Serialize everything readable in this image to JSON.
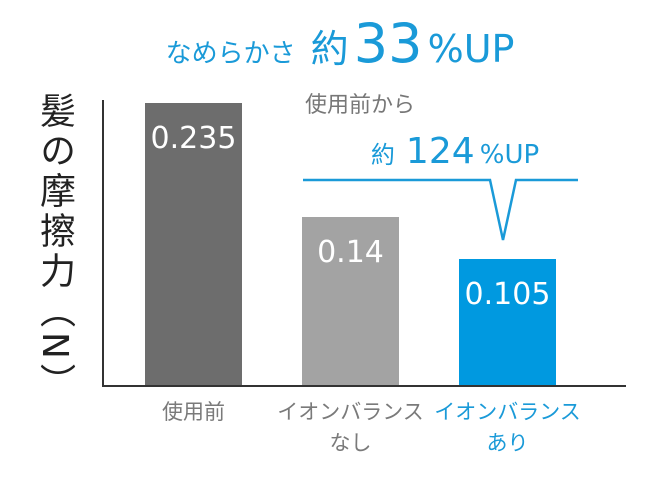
{
  "chart_data": {
    "type": "bar",
    "title": {
      "lead": "なめらかさ",
      "prefix": "約",
      "number": "33",
      "suffix": "%UP"
    },
    "annotation": {
      "line1": "使用前から",
      "prefix": "約",
      "number": "124",
      "suffix": "%UP"
    },
    "y_label": "髪の摩擦力（N）",
    "categories": [
      "使用前",
      "イオンバランス\nなし",
      "イオンバランス\nあり"
    ],
    "category_label_colors": [
      "#7a7a7a",
      "#7a7a7a",
      "#1a9ad8"
    ],
    "values": [
      0.235,
      0.14,
      0.105
    ],
    "colors": [
      "#6d6d6d",
      "#a3a3a3",
      "#0099e0"
    ],
    "ylim": [
      0,
      0.24
    ]
  }
}
